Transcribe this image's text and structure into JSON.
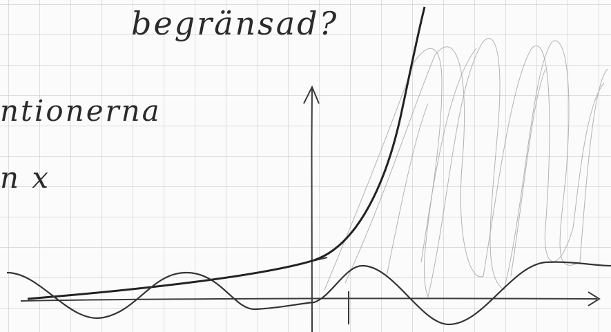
{
  "notes": {
    "lines": [
      "begränsad?",
      "ntionerna",
      "n x"
    ]
  }
}
